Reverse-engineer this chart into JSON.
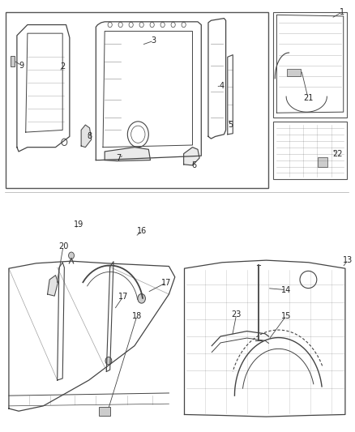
{
  "bg_color": "#ffffff",
  "border_color": "#555555",
  "line_color": "#444444",
  "text_color": "#222222",
  "font_size_label": 7,
  "fig_width": 4.38,
  "fig_height": 5.33,
  "dpi": 100
}
